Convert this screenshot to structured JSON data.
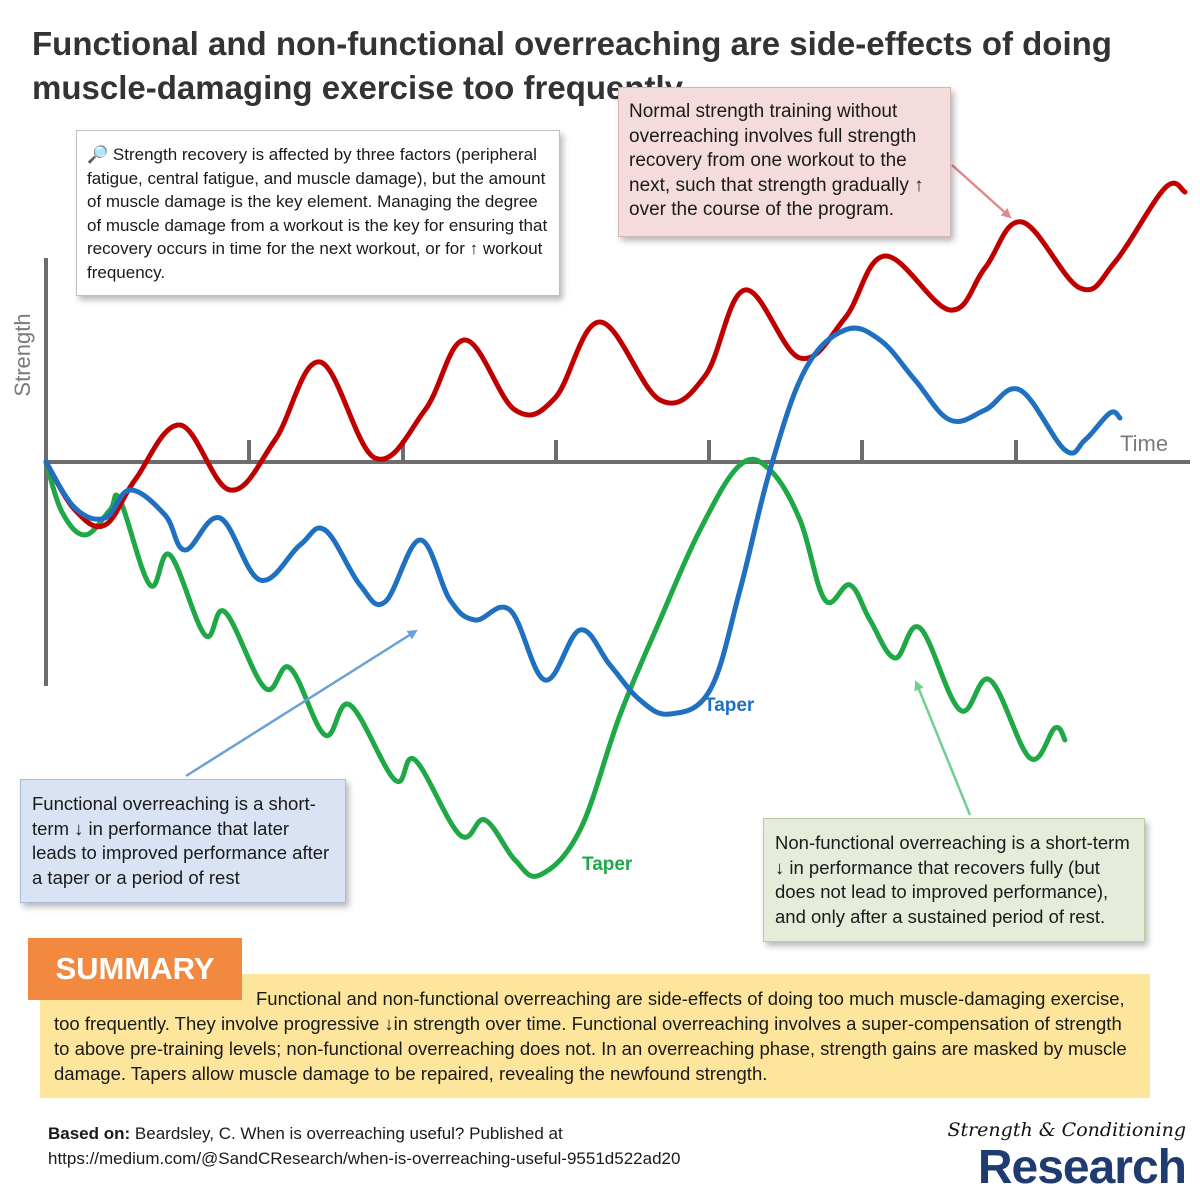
{
  "title": "Functional and non-functional overreaching are side-effects of doing muscle-damaging exercise too frequently",
  "colors": {
    "red_curve": "#c00000",
    "blue_curve": "#1f70c1",
    "green_curve": "#1fa846",
    "axis": "#6d6d6d",
    "summary_tag": "#f3883f",
    "summary_box": "#fde59b",
    "brand": "#1f3b6f"
  },
  "axes": {
    "y_label": "Strength",
    "x_label": "Time"
  },
  "curve_labels": {
    "green_taper": "Taper",
    "blue_taper": "Taper"
  },
  "notes": {
    "main": {
      "icon": "magnifier-icon",
      "icon_glyph": "🔎",
      "text": "Strength recovery is affected by three factors (peripheral fatigue, central fatigue, and muscle damage), but the amount of muscle damage is the key element. Managing the degree of muscle damage from a workout is the key for ensuring that recovery occurs in time for the next workout, or for ↑ workout frequency."
    },
    "normal": "Normal strength training without overreaching involves full strength recovery from one workout to the next, such that strength gradually ↑ over the course of the program.",
    "functional": "Functional overreaching is  a short-term ↓ in performance that later leads to improved performance after a taper or a period of rest",
    "nonfunctional": "Non-functional overreaching  is a short-term ↓ in performance that recovers fully (but does not lead to improved performance), and only after a sustained period of rest."
  },
  "summary": {
    "label": "SUMMARY",
    "text": "Functional and non-functional overreaching are side-effects of doing too much muscle-damaging exercise, too frequently. They involve progressive ↓in strength over time. Functional overreaching involves a super-compensation of strength to above pre-training levels; non-functional overreaching does not. In an overreaching phase, strength gains are masked by muscle damage. Tapers allow muscle damage to be repaired, revealing the newfound strength."
  },
  "footer": {
    "based_on_label": "Based on:",
    "citation": "Beardsley, C. When is overreaching useful? Published at",
    "url": "https://medium.com/@SandCResearch/when-is-overreaching-useful-9551d522ad20"
  },
  "brand": {
    "line1": "Strength & Conditioning",
    "line2": "Research"
  }
}
